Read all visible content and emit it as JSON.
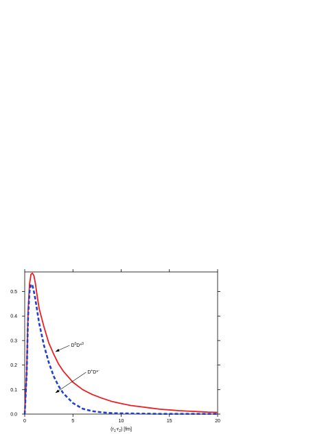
{
  "chart_data": {
    "type": "line",
    "xlabel_parts": [
      "(r",
      "1",
      "-r",
      "2",
      ") [fm]"
    ],
    "xlim": [
      0,
      20
    ],
    "ylim": [
      0,
      0.58
    ],
    "x_ticks": [
      0,
      5,
      10,
      15,
      20
    ],
    "x_tick_labels": [
      "0",
      "5",
      "10",
      "15",
      "20"
    ],
    "y_ticks": [
      0.0,
      0.1,
      0.2,
      0.3,
      0.4,
      0.5
    ],
    "y_tick_labels": [
      "0.0",
      "0.1",
      "0.2",
      "0.3",
      "0.4",
      "0.5"
    ],
    "grid": false,
    "series": [
      {
        "name_parts": [
          "D",
          "0",
          "D*",
          "0"
        ],
        "color": "#ee1c1c",
        "style": "solid",
        "x": [
          0,
          0.2,
          0.35,
          0.5,
          0.65,
          0.8,
          0.95,
          1.1,
          1.3,
          1.5,
          2.0,
          2.5,
          3.0,
          3.5,
          4.0,
          5.0,
          6.0,
          7.0,
          8.0,
          9.0,
          10.0,
          11.0,
          12.0,
          13.0,
          14.0,
          15.0,
          16.0,
          17.0,
          18.0,
          19.0,
          20.0
        ],
        "values": [
          0.0,
          0.17,
          0.42,
          0.53,
          0.57,
          0.575,
          0.565,
          0.535,
          0.48,
          0.43,
          0.355,
          0.29,
          0.245,
          0.205,
          0.175,
          0.13,
          0.1,
          0.08,
          0.065,
          0.052,
          0.043,
          0.035,
          0.03,
          0.025,
          0.02,
          0.017,
          0.014,
          0.012,
          0.01,
          0.008,
          0.007
        ]
      },
      {
        "name_parts": [
          "D",
          "+",
          "D*",
          "-"
        ],
        "color": "#1f3fcf",
        "style": "dashed",
        "x": [
          0,
          0.2,
          0.35,
          0.5,
          0.65,
          0.8,
          0.95,
          1.1,
          1.3,
          1.5,
          2.0,
          2.5,
          3.0,
          3.5,
          4.0,
          5.0,
          6.0,
          7.0,
          8.0,
          9.0,
          10.0,
          12.0,
          14.0,
          16.0,
          18.0,
          20.0
        ],
        "values": [
          0.0,
          0.16,
          0.4,
          0.5,
          0.53,
          0.525,
          0.5,
          0.47,
          0.42,
          0.37,
          0.28,
          0.21,
          0.155,
          0.115,
          0.085,
          0.045,
          0.022,
          0.012,
          0.007,
          0.004,
          0.003,
          0.002,
          0.001,
          0.001,
          0.001,
          0.001
        ]
      }
    ],
    "annotations": [
      {
        "series_index": 0,
        "target": [
          3.2,
          0.255
        ],
        "text_at": [
          4.8,
          0.275
        ]
      },
      {
        "series_index": 1,
        "target": [
          3.2,
          0.087
        ],
        "text_at": [
          6.5,
          0.165
        ]
      }
    ]
  }
}
